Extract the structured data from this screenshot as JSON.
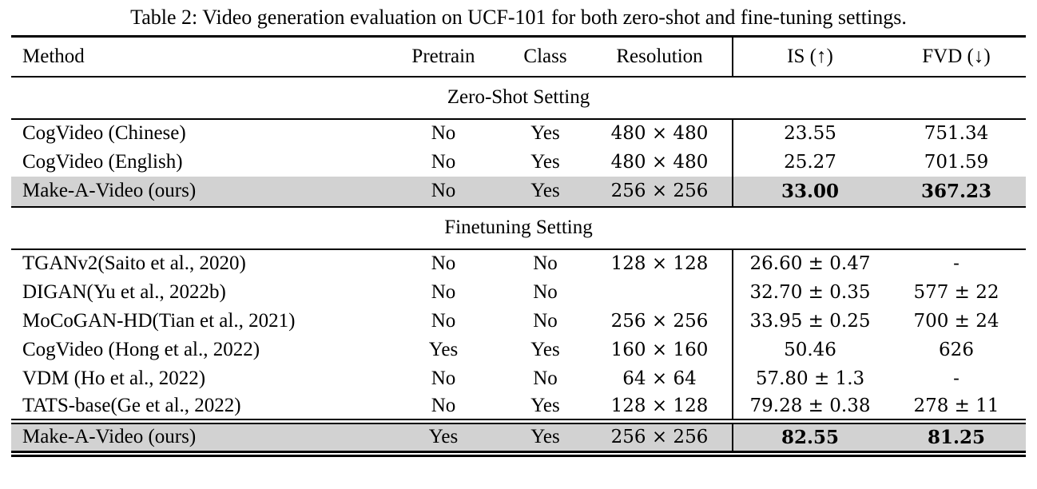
{
  "title": "Table 2: Video generation evaluation on UCF-101 for both zero-shot and fine-tuning settings.",
  "colors": {
    "highlight_row": "#d2d2d2",
    "rule": "#000000",
    "text": "#000000",
    "background": "#ffffff"
  },
  "table": {
    "columns": [
      "Method",
      "Pretrain",
      "Class",
      "Resolution",
      "IS (↑)",
      "FVD (↓)"
    ],
    "sections": [
      {
        "label": "Zero-Shot Setting",
        "rows": [
          {
            "method": "CogVideo (Chinese)",
            "pretrain": "No",
            "class": "Yes",
            "resolution": "480 × 480",
            "is": "23.55",
            "fvd": "751.34"
          },
          {
            "method": "CogVideo (English)",
            "pretrain": "No",
            "class": "Yes",
            "resolution": "480 × 480",
            "is": "25.27",
            "fvd": "701.59"
          },
          {
            "method": "Make-A-Video (ours)",
            "pretrain": "No",
            "class": "Yes",
            "resolution": "256 × 256",
            "is": "33.00",
            "fvd": "367.23",
            "highlighted": true,
            "bold_metrics": true
          }
        ]
      },
      {
        "label": "Finetuning Setting",
        "rows": [
          {
            "method": "TGANv2(Saito et al., 2020)",
            "pretrain": "No",
            "class": "No",
            "resolution": "128 × 128",
            "is": "26.60 ± 0.47",
            "fvd": "-"
          },
          {
            "method": "DIGAN(Yu et al., 2022b)",
            "pretrain": "No",
            "class": "No",
            "resolution": "",
            "is": "32.70 ± 0.35",
            "fvd": "577 ± 22"
          },
          {
            "method": "MoCoGAN-HD(Tian et al., 2021)",
            "pretrain": "No",
            "class": "No",
            "resolution": "256 × 256",
            "is": "33.95 ± 0.25",
            "fvd": "700 ± 24"
          },
          {
            "method": "CogVideo (Hong et al., 2022)",
            "pretrain": "Yes",
            "class": "Yes",
            "resolution": "160 × 160",
            "is": "50.46",
            "fvd": "626"
          },
          {
            "method": "VDM (Ho et al., 2022)",
            "pretrain": "No",
            "class": "No",
            "resolution": "64 × 64",
            "is": "57.80 ± 1.3",
            "fvd": "-"
          },
          {
            "method": "TATS-base(Ge et al., 2022)",
            "pretrain": "No",
            "class": "Yes",
            "resolution": "128 × 128",
            "is": "79.28 ± 0.38",
            "fvd": "278 ± 11"
          },
          {
            "method": "Make-A-Video (ours)",
            "pretrain": "Yes",
            "class": "Yes",
            "resolution": "256 × 256",
            "is": "82.55",
            "fvd": "81.25",
            "highlighted": true,
            "bold_metrics": true
          }
        ]
      }
    ]
  }
}
